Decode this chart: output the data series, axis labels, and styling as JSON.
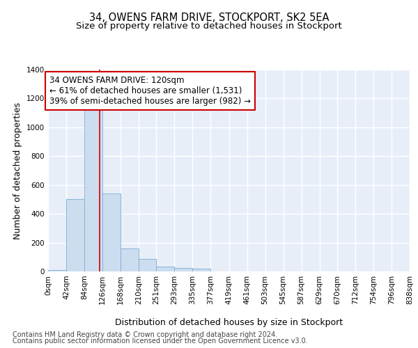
{
  "title": "34, OWENS FARM DRIVE, STOCKPORT, SK2 5EA",
  "subtitle": "Size of property relative to detached houses in Stockport",
  "xlabel": "Distribution of detached houses by size in Stockport",
  "ylabel": "Number of detached properties",
  "bar_color": "#ccddf0",
  "bar_edge_color": "#7aadd4",
  "bg_color": "#e8eef8",
  "grid_color": "#ffffff",
  "annotation_box_color": "#cc0000",
  "annotation_line_color": "#cc0000",
  "annotation_line1": "34 OWENS FARM DRIVE: 120sqm",
  "annotation_line2": "← 61% of detached houses are smaller (1,531)",
  "annotation_line3": "39% of semi-detached houses are larger (982) →",
  "property_size": 120,
  "bin_edges": [
    0,
    42,
    84,
    126,
    168,
    210,
    251,
    293,
    335,
    377,
    419,
    461,
    503,
    545,
    587,
    629,
    670,
    712,
    754,
    796,
    838
  ],
  "bin_values": [
    10,
    500,
    1155,
    540,
    160,
    88,
    35,
    25,
    20,
    0,
    0,
    0,
    0,
    0,
    0,
    0,
    0,
    0,
    0,
    0
  ],
  "ylim": [
    0,
    1400
  ],
  "yticks": [
    0,
    200,
    400,
    600,
    800,
    1000,
    1200,
    1400
  ],
  "tick_labels": [
    "0sqm",
    "42sqm",
    "84sqm",
    "126sqm",
    "168sqm",
    "210sqm",
    "251sqm",
    "293sqm",
    "335sqm",
    "377sqm",
    "419sqm",
    "461sqm",
    "503sqm",
    "545sqm",
    "587sqm",
    "629sqm",
    "670sqm",
    "712sqm",
    "754sqm",
    "796sqm",
    "838sqm"
  ],
  "footer_line1": "Contains HM Land Registry data © Crown copyright and database right 2024.",
  "footer_line2": "Contains public sector information licensed under the Open Government Licence v3.0.",
  "title_fontsize": 10.5,
  "subtitle_fontsize": 9.5,
  "label_fontsize": 9,
  "tick_fontsize": 7.5,
  "annotation_fontsize": 8.5,
  "footer_fontsize": 7
}
